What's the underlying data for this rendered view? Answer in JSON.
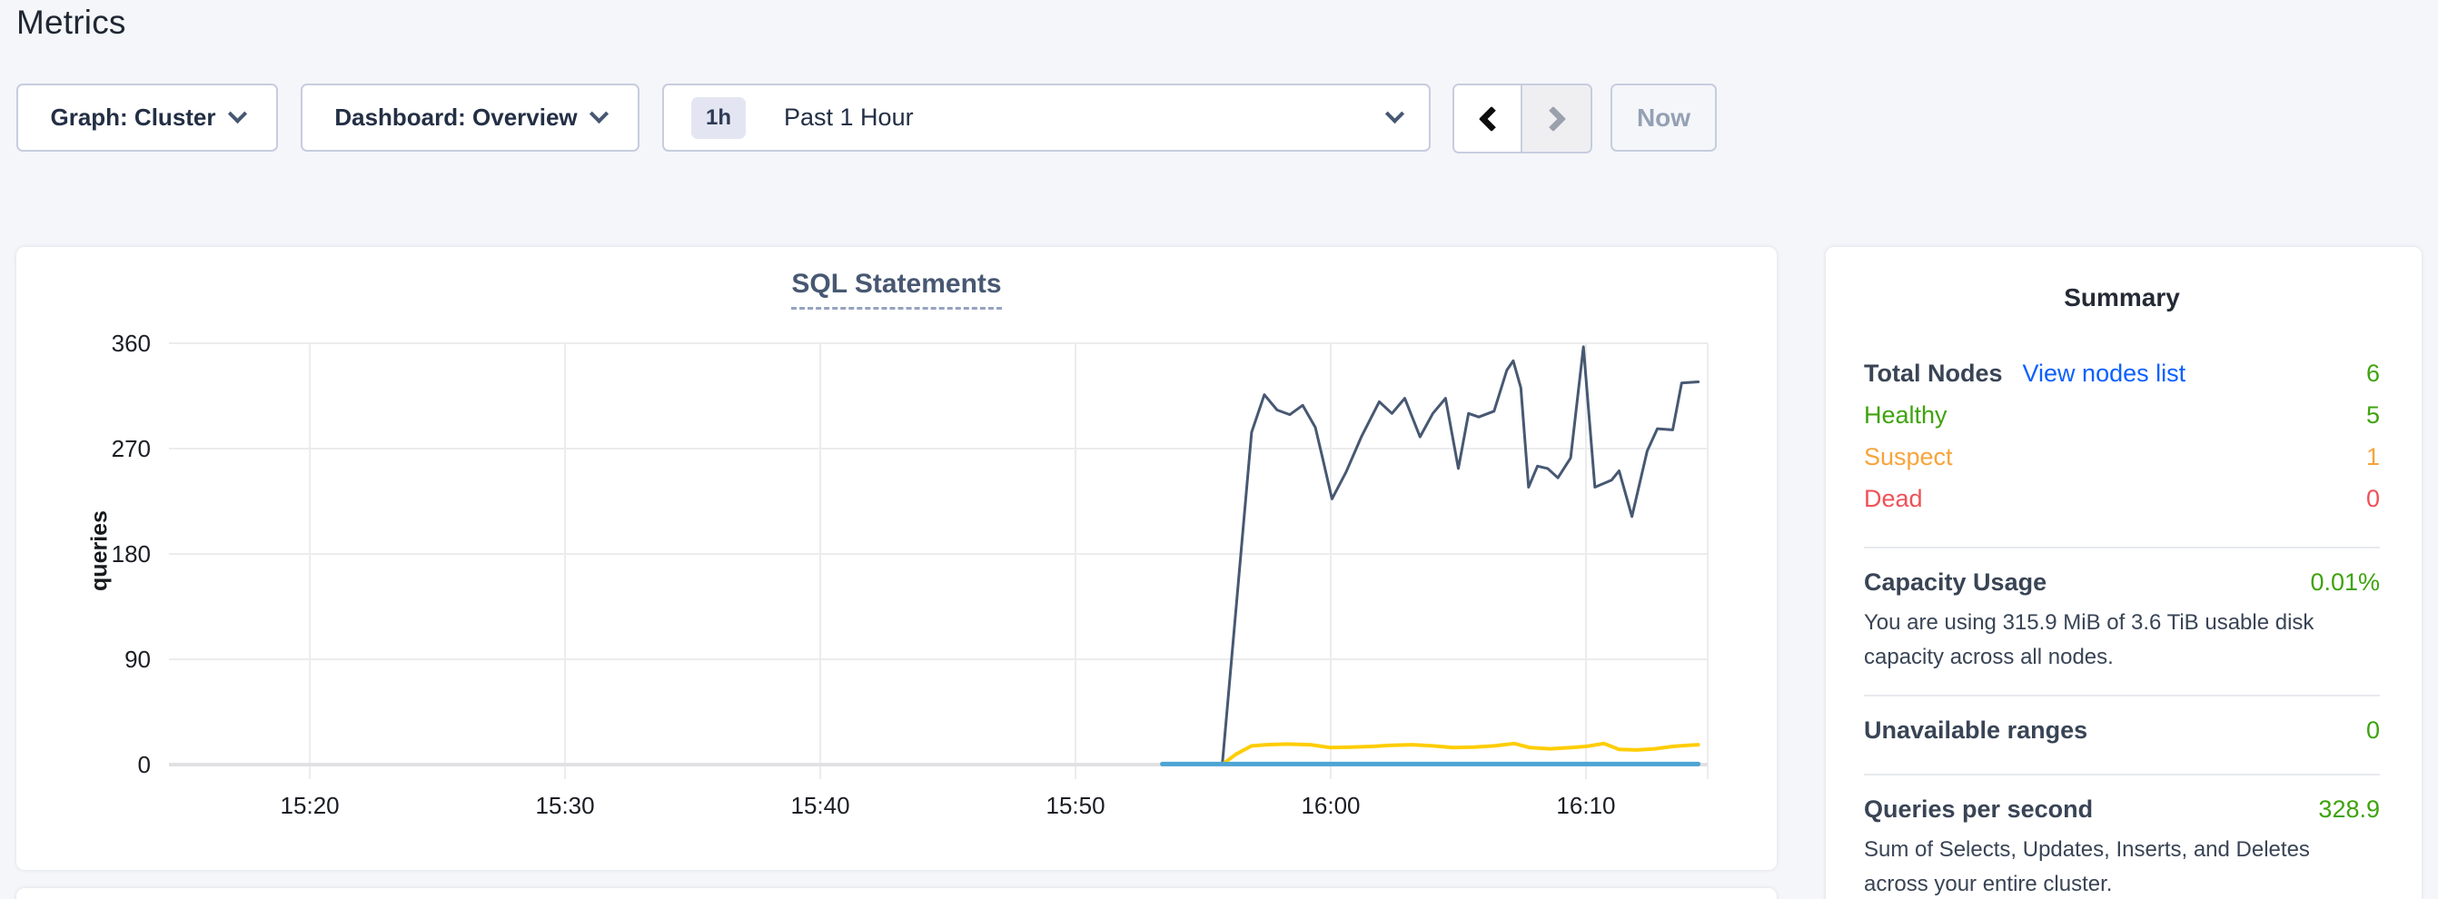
{
  "page": {
    "title": "Metrics"
  },
  "toolbar": {
    "graph_dropdown": {
      "value": "Graph: Cluster"
    },
    "dashboard_dropdown": {
      "value": "Dashboard: Overview"
    },
    "time_selector": {
      "badge": "1h",
      "label": "Past 1 Hour"
    },
    "now_button": "Now"
  },
  "colors": {
    "green": "#3fa30d",
    "orange": "#f7a43b",
    "red": "#ef5158",
    "link_blue": "#0b5fff",
    "dark_label": "#394455",
    "series_dark": "#475872",
    "series_yellow": "#ffcd02",
    "series_blue": "#4da4d4",
    "grid": "#ececee",
    "axis_zero": "#e1e1e4",
    "tick_text": "#1b1e24"
  },
  "chart_data": {
    "type": "line",
    "title": "SQL Statements",
    "ylabel": "queries",
    "xlabel": "",
    "grid": true,
    "legend": "none",
    "ylim": [
      0,
      396
    ],
    "y_ticks": [
      0,
      90,
      180,
      270,
      360
    ],
    "x_domain_minutes_after_15h": [
      14.48,
      74.77
    ],
    "x_ticks_minutes_after_15h": [
      20,
      30,
      40,
      50,
      60,
      70
    ],
    "x_tick_labels": [
      "15:20",
      "15:30",
      "15:40",
      "15:50",
      "16:00",
      "16:10"
    ],
    "series": [
      {
        "name": "sql-statements-dark-line",
        "color_key": "series_dark",
        "stroke_width": 3,
        "points": [
          [
            55.75,
            0
          ],
          [
            56.9,
            284
          ],
          [
            57.4,
            316
          ],
          [
            57.9,
            303
          ],
          [
            58.4,
            299
          ],
          [
            58.9,
            307
          ],
          [
            59.4,
            288
          ],
          [
            59.7,
            260
          ],
          [
            60.05,
            227
          ],
          [
            60.6,
            250
          ],
          [
            61.2,
            280
          ],
          [
            61.9,
            310
          ],
          [
            62.4,
            300
          ],
          [
            62.9,
            313
          ],
          [
            63.5,
            280
          ],
          [
            64.0,
            300
          ],
          [
            64.5,
            313
          ],
          [
            65.0,
            253
          ],
          [
            65.4,
            300
          ],
          [
            65.8,
            297
          ],
          [
            66.4,
            302
          ],
          [
            66.9,
            337
          ],
          [
            67.15,
            345
          ],
          [
            67.45,
            322
          ],
          [
            67.75,
            237
          ],
          [
            68.1,
            255
          ],
          [
            68.5,
            253
          ],
          [
            68.9,
            245
          ],
          [
            69.4,
            262
          ],
          [
            69.9,
            357
          ],
          [
            70.35,
            237
          ],
          [
            71.0,
            243
          ],
          [
            71.3,
            251
          ],
          [
            71.8,
            212
          ],
          [
            72.4,
            268
          ],
          [
            72.8,
            287
          ],
          [
            73.4,
            286
          ],
          [
            73.75,
            326
          ],
          [
            74.4,
            327
          ]
        ]
      },
      {
        "name": "sql-statements-yellow-line",
        "color_key": "series_yellow",
        "stroke_width": 4,
        "points": [
          [
            55.8,
            1
          ],
          [
            56.3,
            9
          ],
          [
            56.9,
            16
          ],
          [
            57.5,
            17
          ],
          [
            58.3,
            17.5
          ],
          [
            59.2,
            17
          ],
          [
            60.0,
            14.5
          ],
          [
            60.8,
            15
          ],
          [
            61.6,
            15.5
          ],
          [
            62.4,
            16.5
          ],
          [
            63.2,
            17
          ],
          [
            64.0,
            16
          ],
          [
            64.8,
            14.5
          ],
          [
            65.6,
            15
          ],
          [
            66.4,
            16
          ],
          [
            67.2,
            18
          ],
          [
            67.8,
            14.5
          ],
          [
            68.6,
            13.5
          ],
          [
            69.4,
            14.5
          ],
          [
            70.0,
            15.5
          ],
          [
            70.7,
            18
          ],
          [
            71.3,
            13
          ],
          [
            72.0,
            12.5
          ],
          [
            72.7,
            13.5
          ],
          [
            73.4,
            15.5
          ],
          [
            74.0,
            16.5
          ],
          [
            74.4,
            17
          ]
        ]
      },
      {
        "name": "sql-statements-blue-line",
        "color_key": "series_blue",
        "stroke_width": 5,
        "points": [
          [
            53.4,
            0.5
          ],
          [
            74.4,
            0.5
          ]
        ]
      }
    ]
  },
  "summary": {
    "title": "Summary",
    "node_rows": [
      {
        "label": "Total Nodes",
        "link": "View nodes list",
        "value": "6",
        "label_status": "dark_label",
        "value_status": "green"
      },
      {
        "label": "Healthy",
        "value": "5",
        "label_status": "green",
        "value_status": "green"
      },
      {
        "label": "Suspect",
        "value": "1",
        "label_status": "orange",
        "value_status": "orange"
      },
      {
        "label": "Dead",
        "value": "0",
        "label_status": "red",
        "value_status": "red"
      }
    ],
    "sections": [
      {
        "label": "Capacity Usage",
        "value": "0.01%",
        "desc": "You are using 315.9 MiB of 3.6 TiB usable disk capacity across all nodes."
      },
      {
        "label": "Unavailable ranges",
        "value": "0",
        "desc": ""
      },
      {
        "label": "Queries per second",
        "value": "328.9",
        "desc": "Sum of Selects, Updates, Inserts, and Deletes across your entire cluster."
      }
    ]
  }
}
